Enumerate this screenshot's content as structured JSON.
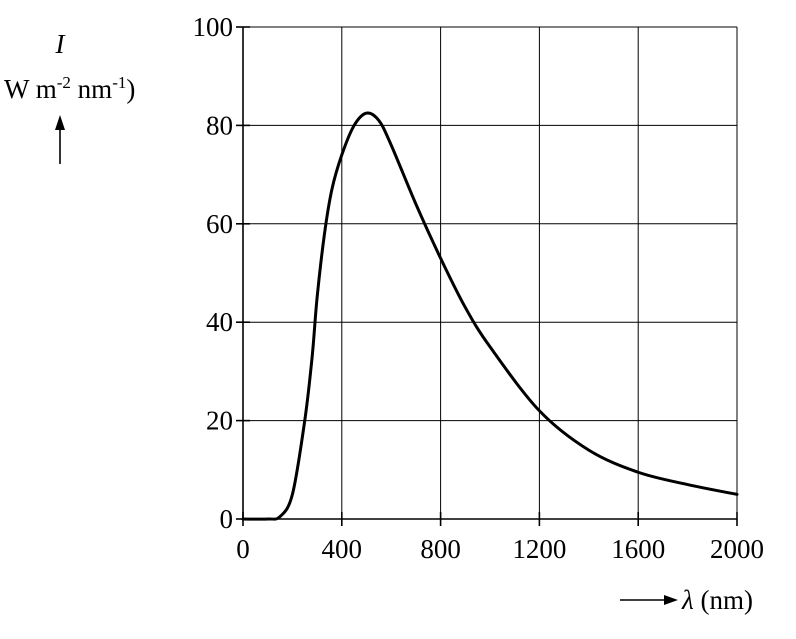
{
  "chart_data": {
    "type": "line",
    "title": "",
    "ylabel_symbol": "I",
    "ylabel_units": {
      "prefix": "W m",
      "exp1": "-2",
      "mid": " nm",
      "exp2": "-1",
      "suffix": ")"
    },
    "xlabel_symbol": "λ",
    "xlabel_units": " (nm)",
    "xlim": [
      0,
      2000
    ],
    "ylim": [
      0,
      100
    ],
    "xticks": [
      0,
      400,
      800,
      1200,
      1600,
      2000
    ],
    "yticks": [
      0,
      20,
      40,
      60,
      80,
      100
    ],
    "grid": true,
    "series": [
      {
        "x": [
          0,
          100,
          150,
          200,
          250,
          280,
          300,
          330,
          360,
          400,
          450,
          500,
          550,
          600,
          700,
          800,
          900,
          1000,
          1200,
          1400,
          1600,
          1800,
          2000
        ],
        "y": [
          0,
          0,
          0.5,
          5,
          20,
          33,
          45,
          58,
          67,
          74,
          80,
          82.5,
          81,
          76,
          64,
          53,
          43,
          35,
          22,
          14,
          9.5,
          7,
          5
        ],
        "color": "#000000"
      }
    ]
  }
}
